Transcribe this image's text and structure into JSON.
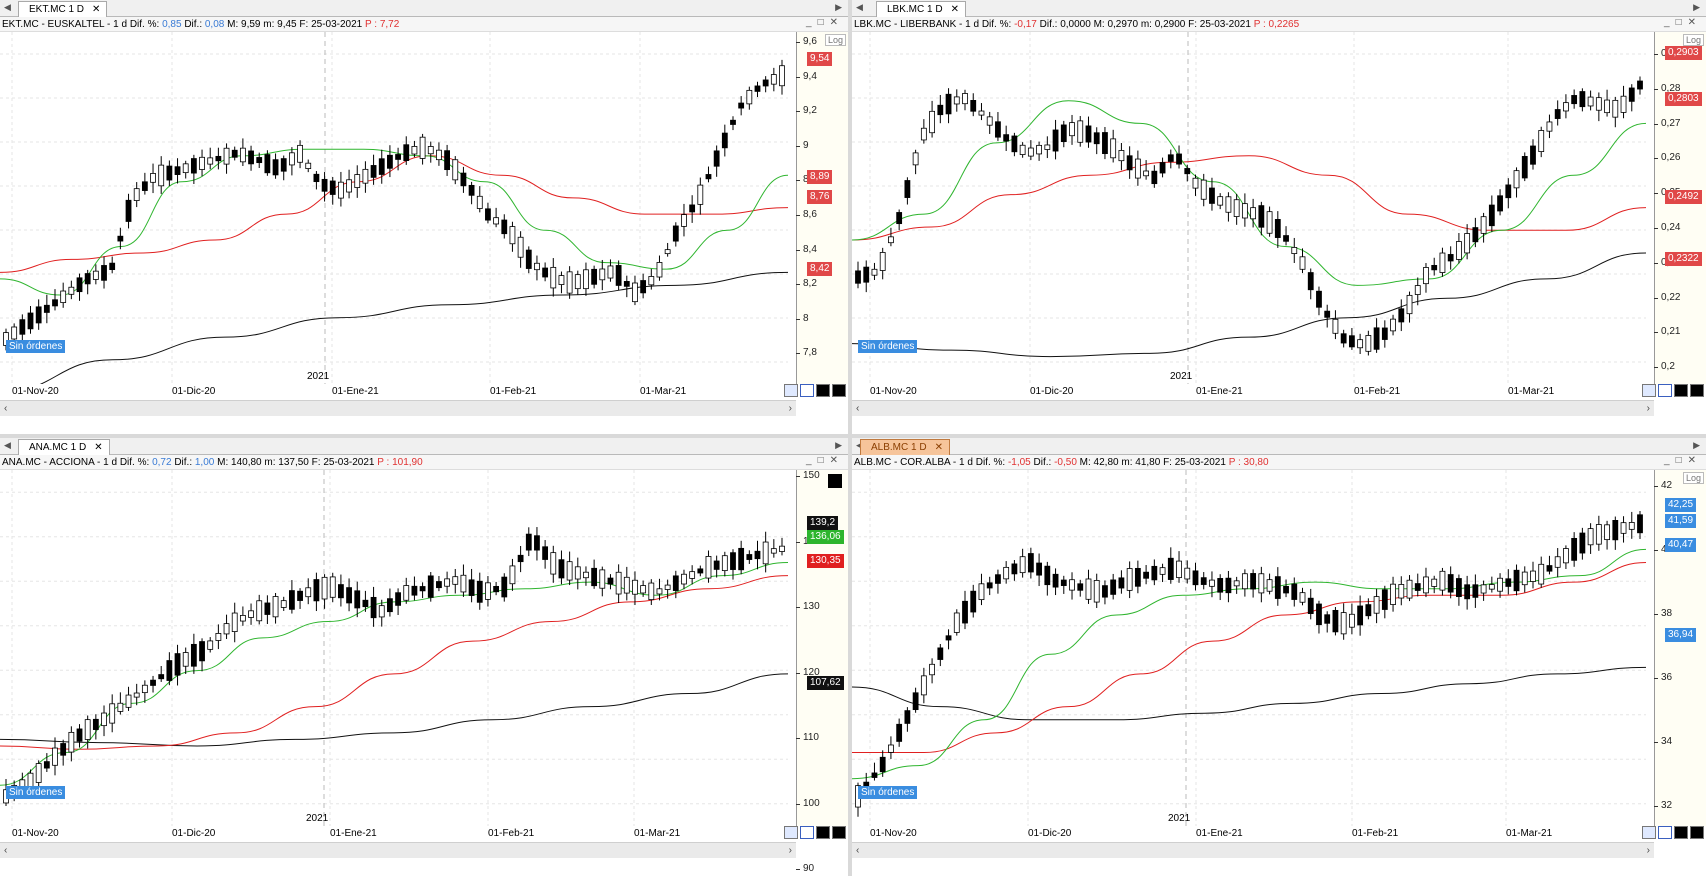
{
  "panels": [
    {
      "tab": "EKT.MC 1 D",
      "header": {
        "symbol": "EKT.MC - EUSKALTEL -",
        "period": "1 d",
        "dif_pct_label": "Dif. %:",
        "dif_pct": "0,85",
        "dif_label": "Dif.:",
        "dif": "0,08",
        "max": "M: 9,59",
        "min": "m: 9,45",
        "date": "F: 25-03-2021",
        "price": "P : 7,72"
      },
      "yticks": [
        "9,6",
        "9,4",
        "9,2",
        "9",
        "8,8",
        "8,6",
        "8,4",
        "8,2",
        "8",
        "7,8"
      ],
      "tags": [
        {
          "text": "9,54",
          "color": "#e04848"
        },
        {
          "text": "8,89",
          "color": "#e04848"
        },
        {
          "text": "8,76",
          "color": "#e04848"
        },
        {
          "text": "8,42",
          "color": "#e04848"
        }
      ],
      "xlabels": [
        "01-Nov-20",
        "01-Dic-20",
        "01-Ene-21",
        "01-Feb-21",
        "01-Mar-21"
      ],
      "year": "2021",
      "orders": "Sin órdenes",
      "log": "Log"
    },
    {
      "tab": "LBK.MC 1 D",
      "header": {
        "symbol": "LBK.MC - LIBERBANK -",
        "period": "1 d",
        "dif_pct_label": "Dif. %:",
        "dif_pct": "-0,17",
        "dif_label": "Dif.:",
        "dif": "0,0000",
        "max": "M: 0,2970",
        "min": "m: 0,2900",
        "date": "F: 25-03-2021",
        "price": "P : 0,2265"
      },
      "yticks": [
        "0,29",
        "0,28",
        "0,27",
        "0,26",
        "0,25",
        "0,24",
        "0,23",
        "0,22",
        "0,21",
        "0,2"
      ],
      "tags": [
        {
          "text": "0,2903",
          "color": "#e04848"
        },
        {
          "text": "0,2803",
          "color": "#e04848"
        },
        {
          "text": "0,2492",
          "color": "#e04848"
        },
        {
          "text": "0,2322",
          "color": "#e04848"
        }
      ],
      "xlabels": [
        "01-Nov-20",
        "01-Dic-20",
        "01-Ene-21",
        "01-Feb-21",
        "01-Mar-21"
      ],
      "year": "2021",
      "orders": "Sin órdenes",
      "log": "Log"
    },
    {
      "tab": "ANA.MC 1 D",
      "header": {
        "symbol": "ANA.MC - ACCIONA -",
        "period": "1 d",
        "dif_pct_label": "Dif. %:",
        "dif_pct": "0,72",
        "dif_label": "Dif.:",
        "dif": "1,00",
        "max": "M: 140,80",
        "min": "m: 137,50",
        "date": "F: 25-03-2021",
        "price": "P : 101,90"
      },
      "yticks": [
        "150",
        "140",
        "130",
        "120",
        "110",
        "100",
        "90"
      ],
      "tags": [
        {
          "text": "139,2",
          "color": "#111"
        },
        {
          "text": "136,06",
          "color": "#2db52d"
        },
        {
          "text": "130,35",
          "color": "#e02020"
        },
        {
          "text": "107,62",
          "color": "#111"
        }
      ],
      "xlabels": [
        "01-Nov-20",
        "01-Dic-20",
        "01-Ene-21",
        "01-Feb-21",
        "01-Mar-21"
      ],
      "year": "2021",
      "orders": "Sin órdenes",
      "log": ""
    },
    {
      "tab": "ALB.MC 1 D",
      "header": {
        "symbol": "ALB.MC - COR.ALBA -",
        "period": "1 d",
        "dif_pct_label": "Dif. %:",
        "dif_pct": "-1,05",
        "dif_label": "Dif.:",
        "dif": "-0,50",
        "max": "M: 42,80",
        "min": "m: 41,80",
        "date": "F: 25-03-2021",
        "price": "P : 30,80"
      },
      "yticks": [
        "42",
        "40",
        "38",
        "36",
        "34",
        "32"
      ],
      "tags": [
        {
          "text": "42,25",
          "color": "#3a8de0"
        },
        {
          "text": "41,59",
          "color": "#3a8de0"
        },
        {
          "text": "40,47",
          "color": "#3a8de0"
        },
        {
          "text": "36,94",
          "color": "#3a8de0"
        }
      ],
      "xlabels": [
        "01-Nov-20",
        "01-Dic-20",
        "01-Ene-21",
        "01-Feb-21",
        "01-Mar-21"
      ],
      "year": "2021",
      "orders": "Sin órdenes",
      "log": "Log"
    }
  ],
  "colors": {
    "ma_short": "#2fb52f",
    "ma_mid": "#e02020",
    "ma_long": "#111111",
    "orders_bg": "#3a8de0"
  }
}
